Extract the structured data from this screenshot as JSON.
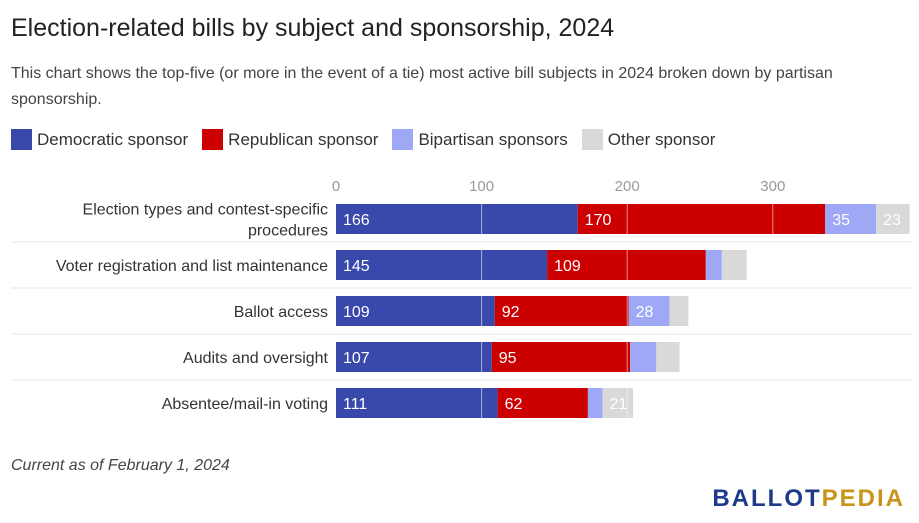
{
  "title": "Election-related bills by subject and sponsorship, 2024",
  "subtitle": "This chart shows the top-five (or more in the event of a tie) most active bill subjects in 2024 broken down by partisan sponsorship.",
  "footnote": "Current as of February 1, 2024",
  "logo": {
    "part1": "BALLOT",
    "part2": "PEDIA"
  },
  "chart_data": {
    "type": "bar",
    "orientation": "horizontal",
    "stacked": true,
    "categories": [
      "Election types and contest-specific procedures",
      "Voter registration and list maintenance",
      "Ballot access",
      "Audits and oversight",
      "Absentee/mail-in voting"
    ],
    "category_lines": [
      [
        "Election types and contest-specific",
        "procedures"
      ],
      [
        "Voter registration and list maintenance"
      ],
      [
        "Ballot access"
      ],
      [
        "Audits and oversight"
      ],
      [
        "Absentee/mail-in voting"
      ]
    ],
    "series": [
      {
        "name": "Democratic sponsor",
        "color": "#3949ab",
        "values": [
          166,
          145,
          109,
          107,
          111
        ]
      },
      {
        "name": "Republican sponsor",
        "color": "#cc0000",
        "values": [
          170,
          109,
          92,
          95,
          62
        ]
      },
      {
        "name": "Bipartisan sponsors",
        "color": "#9fa8f5",
        "values": [
          35,
          11,
          28,
          18,
          10
        ]
      },
      {
        "name": "Other sponsor",
        "color": "#d9d9d9",
        "values": [
          23,
          17,
          13,
          16,
          21
        ]
      }
    ],
    "label_threshold": 20,
    "xticks": [
      0,
      100,
      200,
      300
    ],
    "xlim": [
      0,
      394
    ],
    "grid": true
  }
}
